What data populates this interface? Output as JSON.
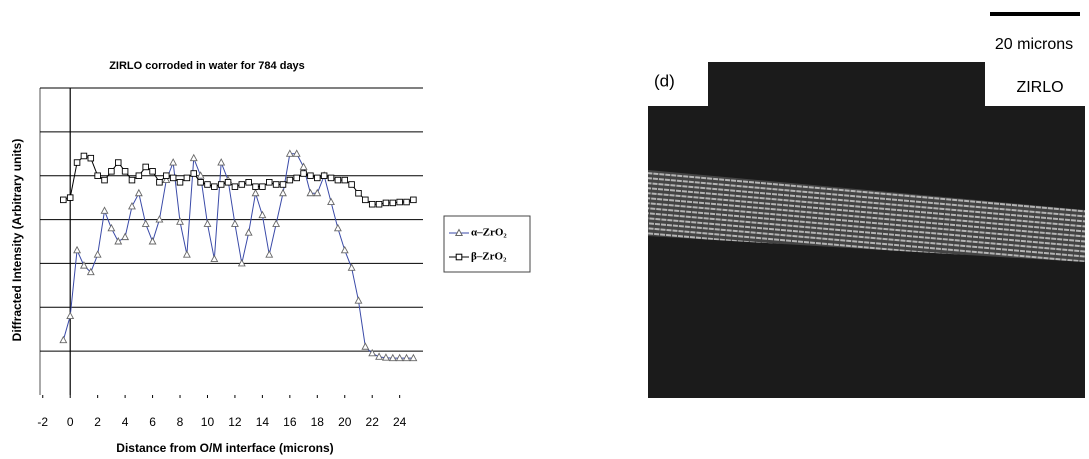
{
  "chart_data": {
    "type": "line",
    "title": "ZIRLO corroded in water for 784 days",
    "x_label": "Distance from O/M interface (microns)",
    "y_label": "Diffracted Intensity (Arbitrary units)",
    "x": [
      -0.5,
      0,
      0.5,
      1,
      1.5,
      2,
      2.5,
      3,
      3.5,
      4,
      4.5,
      5,
      5.5,
      6,
      6.5,
      7,
      7.5,
      8,
      8.5,
      9,
      9.5,
      10,
      10.5,
      11,
      11.5,
      12,
      12.5,
      13,
      13.5,
      14,
      14.5,
      15,
      15.5,
      16,
      16.5,
      17,
      17.5,
      18,
      18.5,
      19,
      19.5,
      20,
      20.5,
      21,
      21.5,
      22,
      22.5,
      23,
      23.5,
      24,
      24.5,
      25
    ],
    "series": [
      {
        "name": "α–ZrO₂",
        "color": "#3a4aa8",
        "marker": "triangle",
        "values": [
          1.25,
          1.8,
          3.3,
          2.95,
          2.8,
          3.2,
          4.2,
          3.8,
          3.5,
          3.6,
          4.3,
          4.6,
          3.9,
          3.5,
          4.0,
          4.9,
          5.3,
          3.95,
          3.2,
          5.4,
          5.0,
          3.9,
          3.1,
          5.3,
          4.9,
          3.9,
          3.0,
          3.7,
          4.6,
          4.1,
          3.2,
          3.9,
          4.6,
          5.5,
          5.5,
          5.2,
          4.6,
          4.6,
          5.0,
          4.4,
          3.8,
          3.3,
          2.9,
          2.15,
          1.1,
          0.95,
          0.87,
          0.85,
          0.84,
          0.84,
          0.84,
          0.84
        ]
      },
      {
        "name": "β–ZrO₂",
        "color": "#000000",
        "marker": "square",
        "values": [
          4.45,
          4.5,
          5.3,
          5.45,
          5.4,
          5.0,
          4.9,
          5.1,
          5.3,
          5.1,
          4.9,
          5.0,
          5.2,
          5.1,
          4.85,
          5.0,
          4.95,
          4.85,
          4.95,
          5.05,
          4.85,
          4.8,
          4.75,
          4.8,
          4.85,
          4.75,
          4.8,
          4.85,
          4.75,
          4.75,
          4.85,
          4.8,
          4.8,
          4.9,
          4.95,
          5.05,
          5.0,
          4.95,
          5.0,
          4.95,
          4.9,
          4.9,
          4.8,
          4.6,
          4.45,
          4.35,
          4.35,
          4.38,
          4.38,
          4.4,
          4.4,
          4.45
        ]
      }
    ],
    "xlim": [
      -2.2,
      25.7
    ],
    "xticks": [
      -2,
      0,
      2,
      4,
      6,
      8,
      10,
      12,
      14,
      16,
      18,
      20,
      22,
      24
    ],
    "ylim": [
      0,
      7
    ],
    "yticks": [
      1,
      2,
      3,
      4,
      5,
      6,
      7
    ],
    "grid": true,
    "legend": "right"
  },
  "micrograph": {
    "scale_bar_label": "20 microns",
    "panel_label": "(d)",
    "material_label": "ZIRLO"
  }
}
